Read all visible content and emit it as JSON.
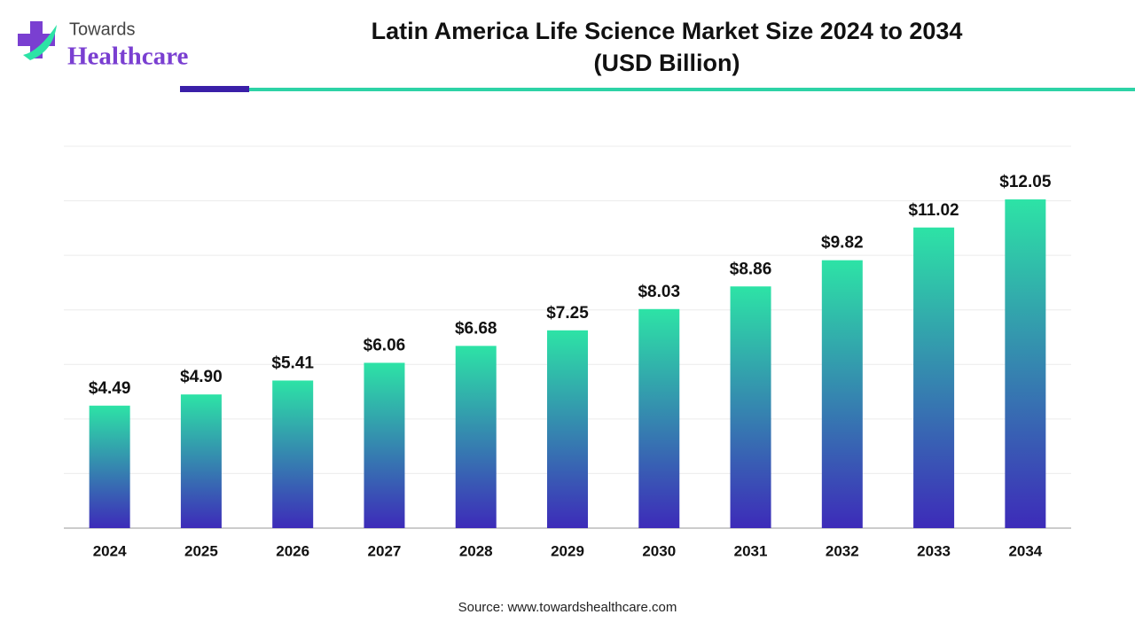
{
  "logo": {
    "line1": "Towards",
    "line2": "Healthcare"
  },
  "chart_data": {
    "type": "bar",
    "title": "Latin America Life Science Market Size 2024 to 2034",
    "subtitle": "(USD Billion)",
    "categories": [
      "2024",
      "2025",
      "2026",
      "2027",
      "2028",
      "2029",
      "2030",
      "2031",
      "2032",
      "2033",
      "2034"
    ],
    "values": [
      4.49,
      4.9,
      5.41,
      6.06,
      6.68,
      7.25,
      8.03,
      8.86,
      9.82,
      11.02,
      12.05
    ],
    "value_labels": [
      "$4.49",
      "$4.90",
      "$5.41",
      "$6.06",
      "$6.68",
      "$7.25",
      "$8.03",
      "$8.86",
      "$9.82",
      "$11.02",
      "$12.05"
    ],
    "color_top": "#2de3a6",
    "color_bottom": "#3d2bb9",
    "ylim": [
      0,
      14
    ],
    "grid_lines": [
      2,
      4,
      6,
      8,
      10,
      12,
      14
    ],
    "grid": true,
    "source": "Source: www.towardshealthcare.com"
  }
}
